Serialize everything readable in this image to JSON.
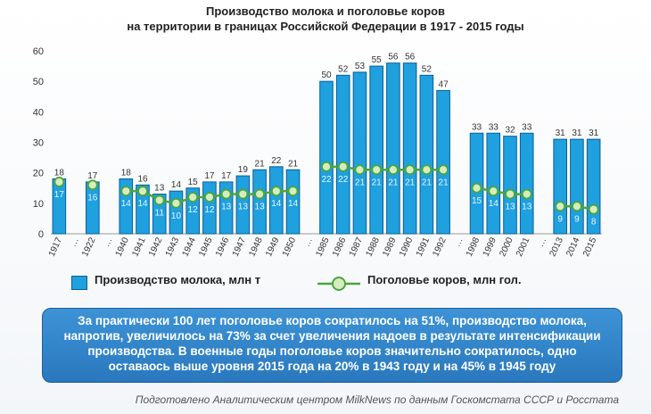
{
  "header": {
    "title_line1": "Производство молока и поголовье коров",
    "title_line2": "на территории в границах Российской Федерации в 1917 - 2015 годы"
  },
  "legend": {
    "milk_label": "Производство молока, млн т",
    "cows_label": "Поголовье коров, млн гол."
  },
  "callout": {
    "text": "За практически 100 лет поголовье коров сократилось на 51%, производство молока, напротив, увеличилось на 73% за счет увеличения надоев в результате интенсификации производства. В военные годы поголовье коров значительно сократилось, одно оставаось выше уровня 2015 года на 20% в 1943 году и на 45% в 1945 году"
  },
  "footer": {
    "source": "Подготовлено Аналитическим центром MilkNews по данным Госкомстата СССР и Росстата"
  },
  "colors": {
    "bar_fill": "#1fa0df",
    "bar_border": "#0b5f96",
    "line": "#4aa63a",
    "marker_fill": "#d6ecc0",
    "callout": "#2f84c9"
  },
  "chart_data": {
    "type": "bar",
    "ylim": [
      0,
      60
    ],
    "yticks": [
      0,
      10,
      20,
      30,
      40,
      50,
      60
    ],
    "grid": false,
    "legend_position": "bottom",
    "categories": [
      "1917",
      "…",
      "1922",
      "…",
      "1940",
      "1941",
      "1942",
      "1943",
      "1944",
      "1945",
      "1946",
      "1947",
      "1948",
      "1949",
      "1950",
      "…",
      "1985",
      "1986",
      "1987",
      "1988",
      "1989",
      "1990",
      "1991",
      "1992",
      "…",
      "1998",
      "1999",
      "2000",
      "2001",
      "…",
      "2013",
      "2014",
      "2015"
    ],
    "series": [
      {
        "name": "Производство молока, млн т",
        "kind": "bar",
        "values": [
          18,
          null,
          17,
          null,
          18,
          16,
          13,
          14,
          15,
          17,
          17,
          19,
          21,
          22,
          21,
          null,
          50,
          52,
          53,
          55,
          56,
          56,
          52,
          47,
          null,
          33,
          33,
          32,
          33,
          null,
          31,
          31,
          31
        ]
      },
      {
        "name": "Поголовье коров, млн гол.",
        "kind": "line",
        "values": [
          17,
          null,
          16,
          null,
          14,
          14,
          11,
          10,
          12,
          12,
          13,
          13,
          13,
          14,
          14,
          null,
          22,
          22,
          21,
          21,
          21,
          21,
          21,
          21,
          null,
          15,
          14,
          13,
          13,
          null,
          9,
          9,
          8
        ],
        "breaks_after": [
          "1917",
          "1922",
          "1950",
          "1992",
          "2001"
        ]
      }
    ]
  }
}
